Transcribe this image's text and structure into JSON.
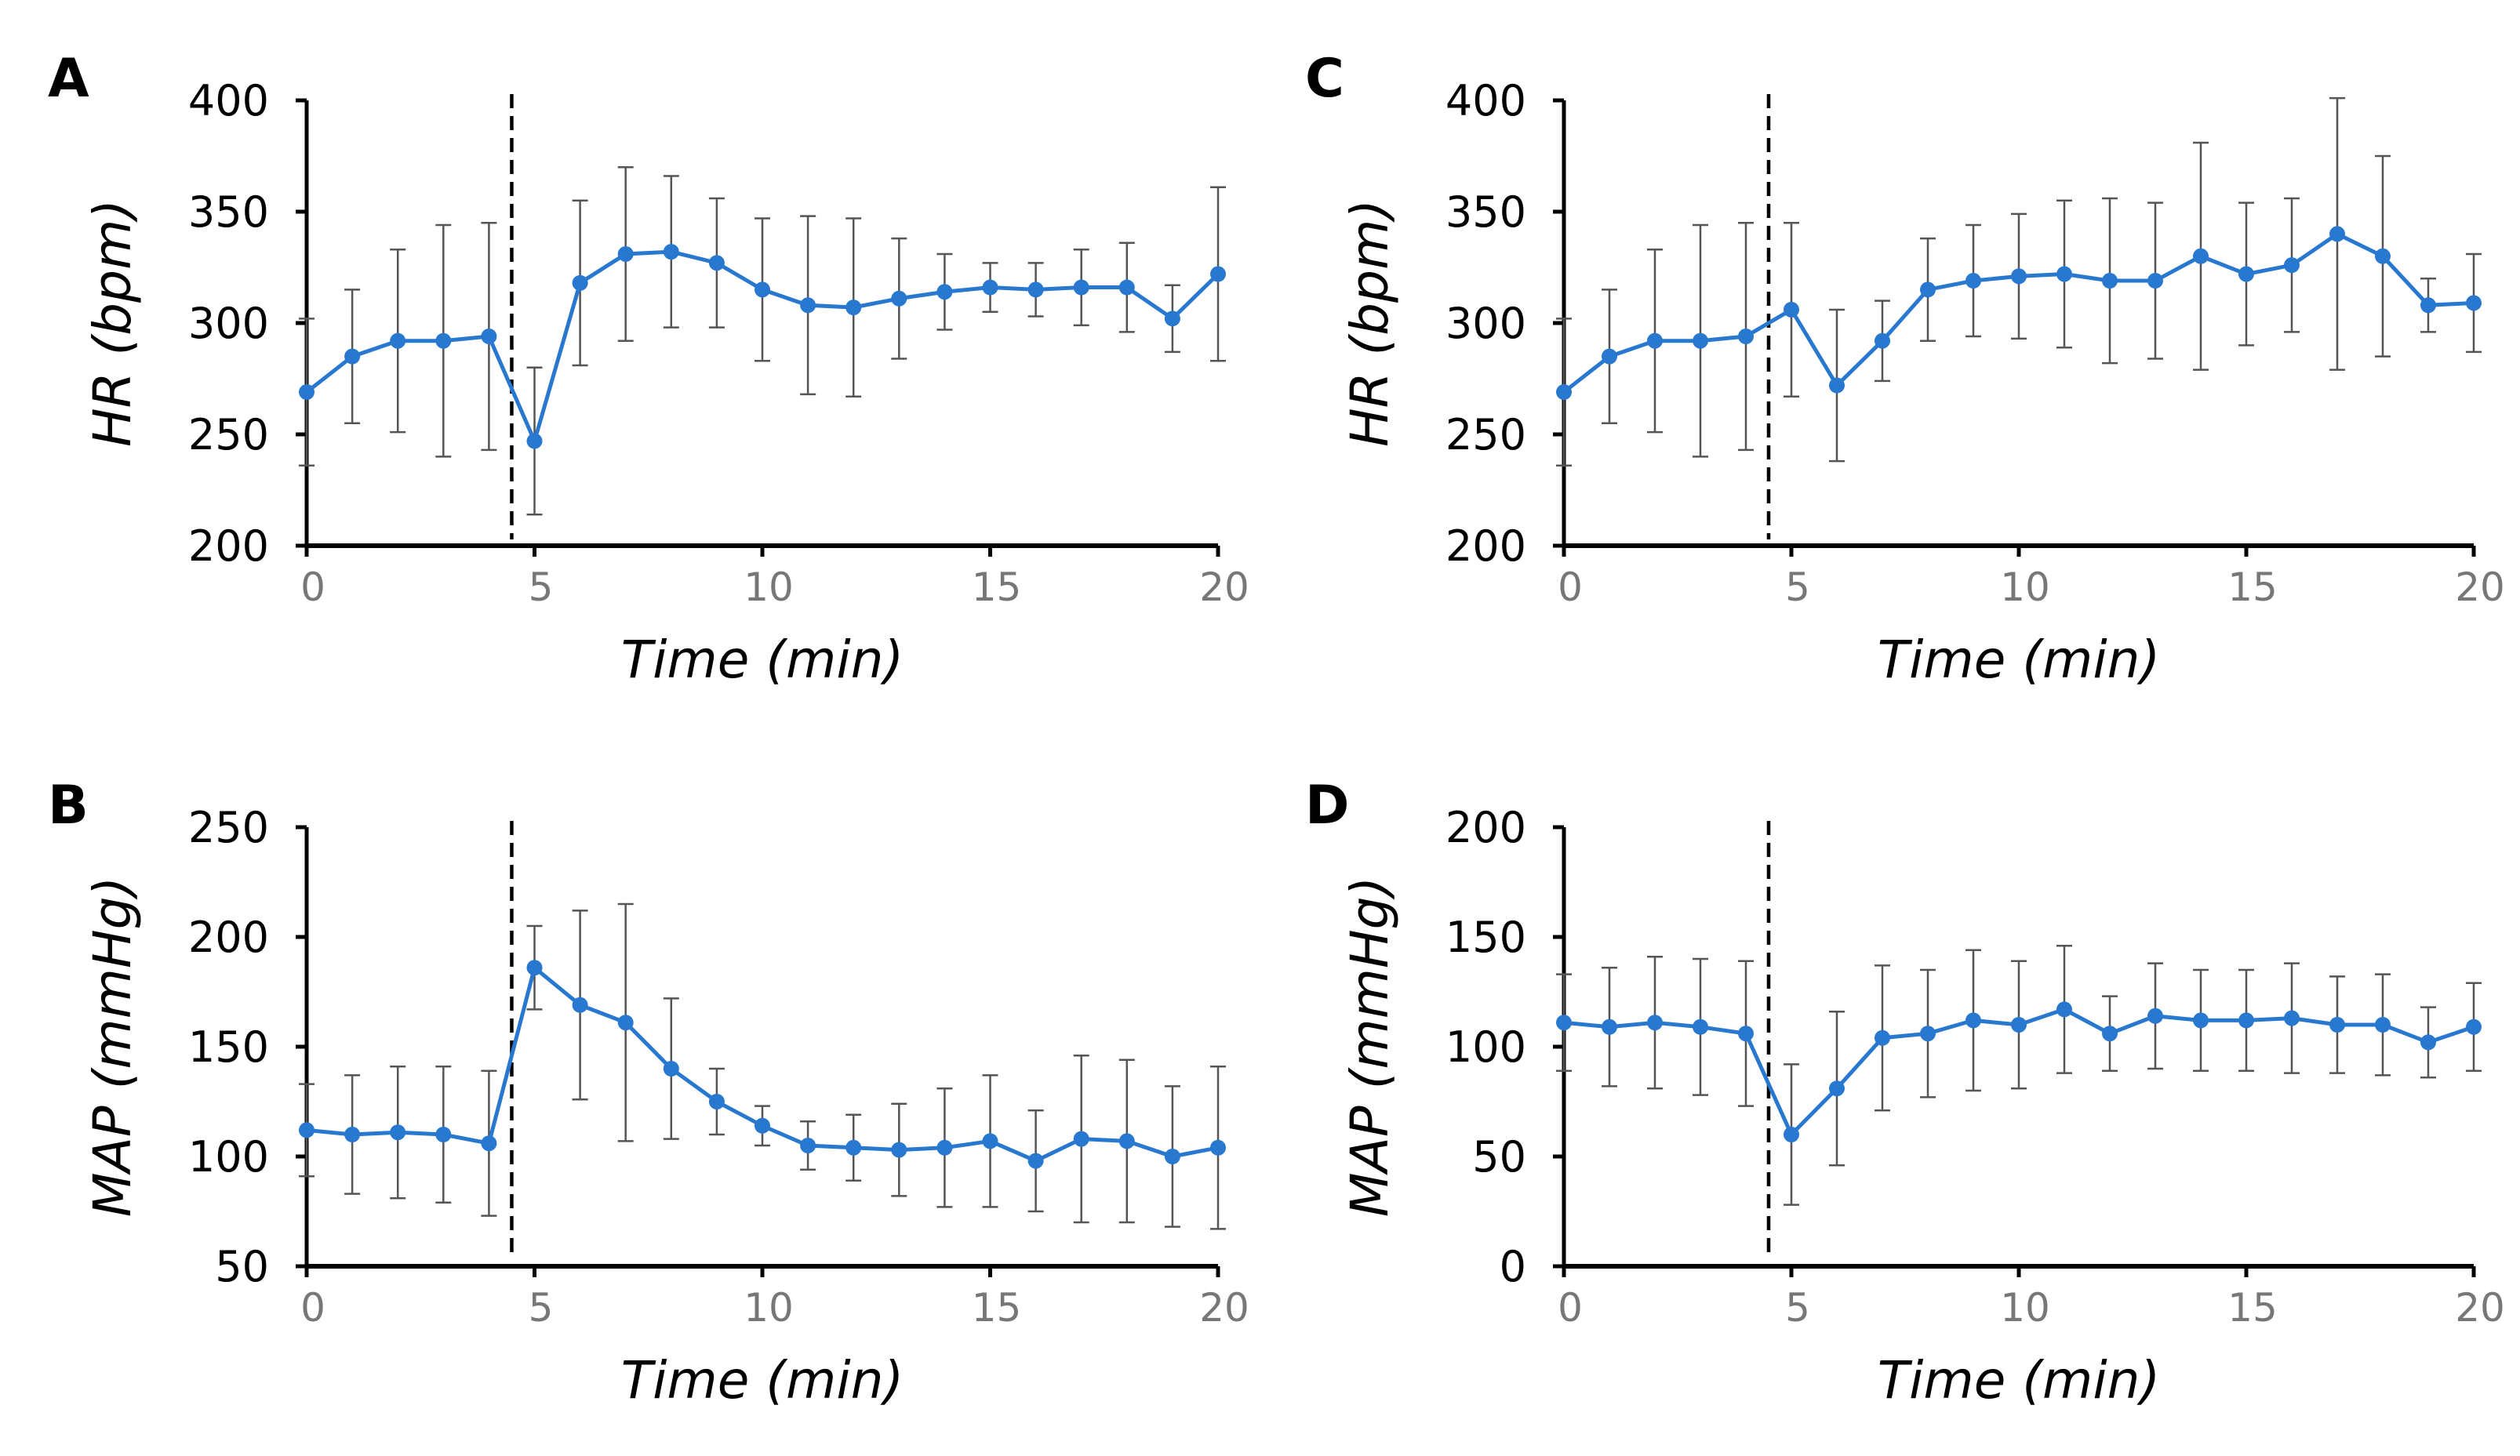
{
  "chart_data": [
    {
      "panel": "A",
      "type": "line",
      "xlabel": "Time (min)",
      "ylabel": "HR (bpm)",
      "xlim": [
        0,
        20
      ],
      "ylim": [
        200,
        400
      ],
      "xticks": [
        0,
        5,
        10,
        15,
        20
      ],
      "yticks": [
        200,
        250,
        300,
        350,
        400
      ],
      "event_line_x": 4.5,
      "color": "#2878d0",
      "grid": false,
      "x": [
        0,
        1,
        2,
        3,
        4,
        5,
        6,
        7,
        8,
        9,
        10,
        11,
        12,
        13,
        14,
        15,
        16,
        17,
        18,
        19,
        20
      ],
      "y": [
        269,
        285,
        292,
        292,
        294,
        247,
        318,
        331,
        332,
        327,
        315,
        308,
        307,
        311,
        314,
        316,
        315,
        316,
        316,
        302,
        322
      ],
      "error": [
        33,
        30,
        41,
        52,
        51,
        33,
        37,
        39,
        34,
        29,
        32,
        40,
        40,
        27,
        17,
        11,
        12,
        17,
        20,
        15,
        39
      ]
    },
    {
      "panel": "B",
      "type": "line",
      "xlabel": "Time (min)",
      "ylabel": "MAP (mmHg)",
      "xlim": [
        0,
        20
      ],
      "ylim": [
        50,
        250
      ],
      "xticks": [
        0,
        5,
        10,
        15,
        20
      ],
      "yticks": [
        50,
        100,
        150,
        200,
        250
      ],
      "event_line_x": 4.5,
      "color": "#2878d0",
      "grid": false,
      "x": [
        0,
        1,
        2,
        3,
        4,
        5,
        6,
        7,
        8,
        9,
        10,
        11,
        12,
        13,
        14,
        15,
        16,
        17,
        18,
        19,
        20
      ],
      "y": [
        112,
        110,
        111,
        110,
        106,
        186,
        169,
        161,
        140,
        125,
        114,
        105,
        104,
        103,
        104,
        107,
        98,
        108,
        107,
        100,
        104
      ],
      "error": [
        21,
        27,
        30,
        31,
        33,
        19,
        43,
        54,
        32,
        15,
        9,
        11,
        15,
        21,
        27,
        30,
        23,
        38,
        37,
        32,
        37
      ]
    },
    {
      "panel": "C",
      "type": "line",
      "xlabel": "Time (min)",
      "ylabel": "HR (bpm)",
      "xlim": [
        0,
        20
      ],
      "ylim": [
        200,
        400
      ],
      "xticks": [
        0,
        5,
        10,
        15,
        20
      ],
      "yticks": [
        200,
        250,
        300,
        350,
        400
      ],
      "event_line_x": 4.5,
      "color": "#2878d0",
      "grid": false,
      "x": [
        0,
        1,
        2,
        3,
        4,
        5,
        6,
        7,
        8,
        9,
        10,
        11,
        12,
        13,
        14,
        15,
        16,
        17,
        18,
        19,
        20
      ],
      "y": [
        269,
        285,
        292,
        292,
        294,
        306,
        272,
        292,
        315,
        319,
        321,
        322,
        319,
        319,
        330,
        322,
        326,
        340,
        330,
        308,
        309
      ],
      "error": [
        33,
        30,
        41,
        52,
        51,
        39,
        34,
        18,
        23,
        25,
        28,
        33,
        37,
        35,
        51,
        32,
        30,
        61,
        45,
        12,
        22
      ]
    },
    {
      "panel": "D",
      "type": "line",
      "xlabel": "Time (min)",
      "ylabel": "MAP (mmHg)",
      "xlim": [
        0,
        20
      ],
      "ylim": [
        0,
        200
      ],
      "xticks": [
        0,
        5,
        10,
        15,
        20
      ],
      "yticks": [
        0,
        50,
        100,
        150,
        200
      ],
      "event_line_x": 4.5,
      "color": "#2878d0",
      "grid": false,
      "x": [
        0,
        1,
        2,
        3,
        4,
        5,
        6,
        7,
        8,
        9,
        10,
        11,
        12,
        13,
        14,
        15,
        16,
        17,
        18,
        19,
        20
      ],
      "y": [
        111,
        109,
        111,
        109,
        106,
        60,
        81,
        104,
        106,
        112,
        110,
        117,
        106,
        114,
        112,
        112,
        113,
        110,
        110,
        102,
        109
      ],
      "error": [
        22,
        27,
        30,
        31,
        33,
        32,
        35,
        33,
        29,
        32,
        29,
        29,
        17,
        24,
        23,
        23,
        25,
        22,
        23,
        16,
        20
      ]
    }
  ]
}
